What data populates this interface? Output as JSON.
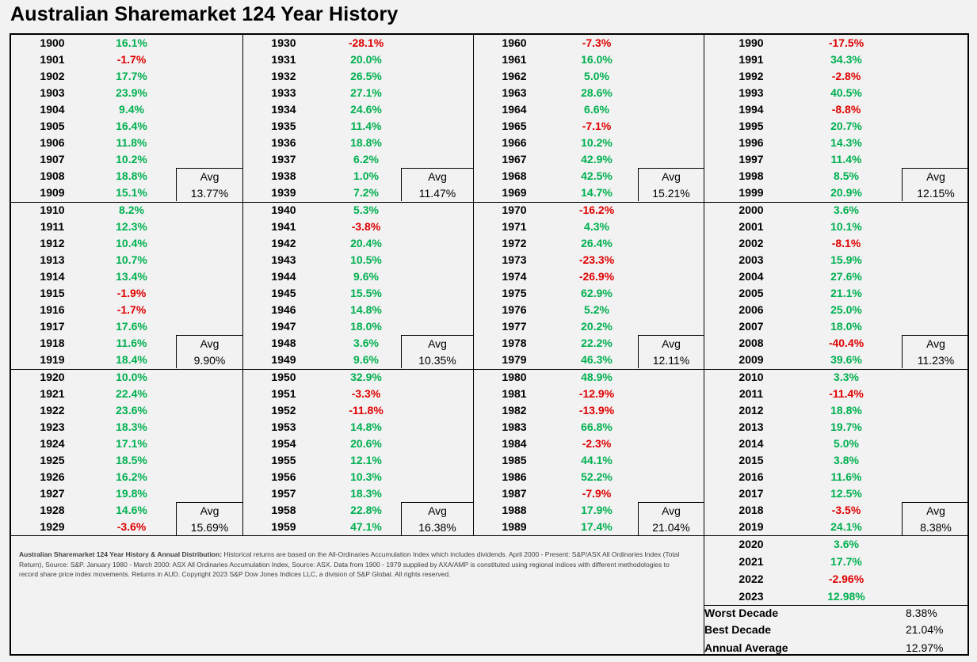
{
  "title": "Australian Sharemarket 124 Year History",
  "avg_label": "Avg",
  "decades": [
    {
      "years": [
        "1900",
        "1901",
        "1902",
        "1903",
        "1904",
        "1905",
        "1906",
        "1907",
        "1908",
        "1909"
      ],
      "returns": [
        "16.1%",
        "-1.7%",
        "17.7%",
        "23.9%",
        "9.4%",
        "16.4%",
        "11.8%",
        "10.2%",
        "18.8%",
        "15.1%"
      ],
      "avg": "13.77%"
    },
    {
      "years": [
        "1910",
        "1911",
        "1912",
        "1913",
        "1914",
        "1915",
        "1916",
        "1917",
        "1918",
        "1919"
      ],
      "returns": [
        "8.2%",
        "12.3%",
        "10.4%",
        "10.7%",
        "13.4%",
        "-1.9%",
        "-1.7%",
        "17.6%",
        "11.6%",
        "18.4%"
      ],
      "avg": "9.90%"
    },
    {
      "years": [
        "1920",
        "1921",
        "1922",
        "1923",
        "1924",
        "1925",
        "1926",
        "1927",
        "1928",
        "1929"
      ],
      "returns": [
        "10.0%",
        "22.4%",
        "23.6%",
        "18.3%",
        "17.1%",
        "18.5%",
        "16.2%",
        "19.8%",
        "14.6%",
        "-3.6%"
      ],
      "avg": "15.69%"
    },
    {
      "years": [
        "1930",
        "1931",
        "1932",
        "1933",
        "1934",
        "1935",
        "1936",
        "1937",
        "1938",
        "1939"
      ],
      "returns": [
        "-28.1%",
        "20.0%",
        "26.5%",
        "27.1%",
        "24.6%",
        "11.4%",
        "18.8%",
        "6.2%",
        "1.0%",
        "7.2%"
      ],
      "avg": "11.47%"
    },
    {
      "years": [
        "1940",
        "1941",
        "1942",
        "1943",
        "1944",
        "1945",
        "1946",
        "1947",
        "1948",
        "1949"
      ],
      "returns": [
        "5.3%",
        "-3.8%",
        "20.4%",
        "10.5%",
        "9.6%",
        "15.5%",
        "14.8%",
        "18.0%",
        "3.6%",
        "9.6%"
      ],
      "avg": "10.35%"
    },
    {
      "years": [
        "1950",
        "1951",
        "1952",
        "1953",
        "1954",
        "1955",
        "1956",
        "1957",
        "1958",
        "1959"
      ],
      "returns": [
        "32.9%",
        "-3.3%",
        "-11.8%",
        "14.8%",
        "20.6%",
        "12.1%",
        "10.3%",
        "18.3%",
        "22.8%",
        "47.1%"
      ],
      "avg": "16.38%"
    },
    {
      "years": [
        "1960",
        "1961",
        "1962",
        "1963",
        "1964",
        "1965",
        "1966",
        "1967",
        "1968",
        "1969"
      ],
      "returns": [
        "-7.3%",
        "16.0%",
        "5.0%",
        "28.6%",
        "6.6%",
        "-7.1%",
        "10.2%",
        "42.9%",
        "42.5%",
        "14.7%"
      ],
      "avg": "15.21%"
    },
    {
      "years": [
        "1970",
        "1971",
        "1972",
        "1973",
        "1974",
        "1975",
        "1976",
        "1977",
        "1978",
        "1979"
      ],
      "returns": [
        "-16.2%",
        "4.3%",
        "26.4%",
        "-23.3%",
        "-26.9%",
        "62.9%",
        "5.2%",
        "20.2%",
        "22.2%",
        "46.3%"
      ],
      "avg": "12.11%"
    },
    {
      "years": [
        "1980",
        "1981",
        "1982",
        "1983",
        "1984",
        "1985",
        "1986",
        "1987",
        "1988",
        "1989"
      ],
      "returns": [
        "48.9%",
        "-12.9%",
        "-13.9%",
        "66.8%",
        "-2.3%",
        "44.1%",
        "52.2%",
        "-7.9%",
        "17.9%",
        "17.4%"
      ],
      "avg": "21.04%"
    },
    {
      "years": [
        "1990",
        "1991",
        "1992",
        "1993",
        "1994",
        "1995",
        "1996",
        "1997",
        "1998",
        "1999"
      ],
      "returns": [
        "-17.5%",
        "34.3%",
        "-2.8%",
        "40.5%",
        "-8.8%",
        "20.7%",
        "14.3%",
        "11.4%",
        "8.5%",
        "20.9%"
      ],
      "avg": "12.15%"
    },
    {
      "years": [
        "2000",
        "2001",
        "2002",
        "2003",
        "2004",
        "2005",
        "2006",
        "2007",
        "2008",
        "2009"
      ],
      "returns": [
        "3.6%",
        "10.1%",
        "-8.1%",
        "15.9%",
        "27.6%",
        "21.1%",
        "25.0%",
        "18.0%",
        "-40.4%",
        "39.6%"
      ],
      "avg": "11.23%"
    },
    {
      "years": [
        "2010",
        "2011",
        "2012",
        "2013",
        "2014",
        "2015",
        "2016",
        "2017",
        "2018",
        "2019"
      ],
      "returns": [
        "3.3%",
        "-11.4%",
        "18.8%",
        "19.7%",
        "5.0%",
        "3.8%",
        "11.6%",
        "12.5%",
        "-3.5%",
        "24.1%"
      ],
      "avg": "8.38%"
    }
  ],
  "recent": {
    "years": [
      "2020",
      "2021",
      "2022",
      "2023"
    ],
    "returns": [
      "3.6%",
      "17.7%",
      "-2.96%",
      "12.98%"
    ]
  },
  "summary": [
    {
      "label": "Worst Decade",
      "value": "8.38%"
    },
    {
      "label": "Best Decade",
      "value": "21.04%"
    },
    {
      "label": "Annual Average",
      "value": "12.97%"
    }
  ],
  "footnote": {
    "bold": "Australian Sharemarket 124 Year History & Annual Distribution:",
    "text": " Historical returns are based on the All-Ordinaries Accumulation Index  which includes dividends. April 2000 - Present: S&P/ASX All Ordinaries Index (Total Return), Source: S&P. January 1980 - March 2000: ASX All Ordinaries Accumulation Index, Source: ASX. Data from 1900 - 1979 supplied by AXA/AMP is constituted using regional indices with different methodologies to record share price index movements. Returns in AUD. Copyright 2023 S&P Dow Jones Indices LLC, a division of S&P Global. All rights reserved."
  }
}
